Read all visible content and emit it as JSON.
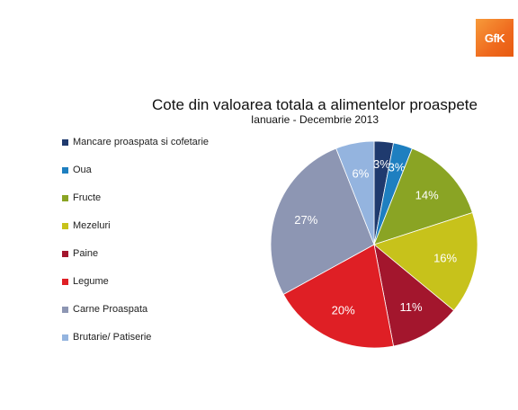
{
  "brand": {
    "logo_text": "GfK",
    "color": "#ef6a1e"
  },
  "chart_data": {
    "type": "pie",
    "title": "Cote din valoarea totala a alimentelor proaspete",
    "subtitle": "Ianuarie  - Decembrie 2013",
    "legend_position": "left",
    "slices": [
      {
        "label": "Mancare proaspata si cofetarie",
        "value": 3,
        "display": "3%",
        "color": "#1f3a6e"
      },
      {
        "label": "Oua",
        "value": 3,
        "display": "3%",
        "color": "#1e7fc0"
      },
      {
        "label": "Fructe",
        "value": 14,
        "display": "14%",
        "color": "#8aa424"
      },
      {
        "label": "Mezeluri",
        "value": 16,
        "display": "16%",
        "color": "#c7c21b"
      },
      {
        "label": "Paine",
        "value": 11,
        "display": "11%",
        "color": "#a3162d"
      },
      {
        "label": "Legume",
        "value": 20,
        "display": "20%",
        "color": "#df1f25"
      },
      {
        "label": "Carne Proaspata",
        "value": 27,
        "display": "27%",
        "color": "#8d96b3"
      },
      {
        "label": "Brutarie/ Patiserie",
        "value": 6,
        "display": "6%",
        "color": "#94b4df"
      }
    ]
  }
}
